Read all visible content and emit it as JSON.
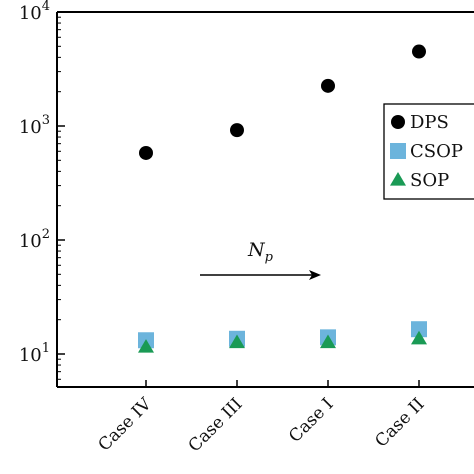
{
  "chart_data": {
    "type": "scatter",
    "title": "",
    "xlabel": "",
    "ylabel": "",
    "yscale": "log",
    "ylim": [
      5,
      10000
    ],
    "y_ticks": [
      {
        "value": 10,
        "base": "10",
        "exp": "1"
      },
      {
        "value": 100,
        "base": "10",
        "exp": "2"
      },
      {
        "value": 1000,
        "base": "10",
        "exp": "3"
      },
      {
        "value": 10000,
        "base": "10",
        "exp": "4"
      }
    ],
    "categories": [
      "Case IV",
      "Case III",
      "Case I",
      "Case II"
    ],
    "grid": false,
    "legend_position": "right",
    "series": [
      {
        "name": "DPS",
        "marker": "circle",
        "color": "#000000",
        "values": [
          580,
          920,
          2250,
          4500
        ]
      },
      {
        "name": "CSOP",
        "marker": "square",
        "color": "#6cb4dc",
        "values": [
          13.2,
          13.6,
          14.0,
          16.5
        ]
      },
      {
        "name": "SOP",
        "marker": "triangle",
        "color": "#1a9a55",
        "values": [
          11.5,
          12.6,
          12.6,
          13.6
        ]
      }
    ],
    "annotation": {
      "base": "N",
      "sub": "p",
      "arrow": "right"
    }
  }
}
